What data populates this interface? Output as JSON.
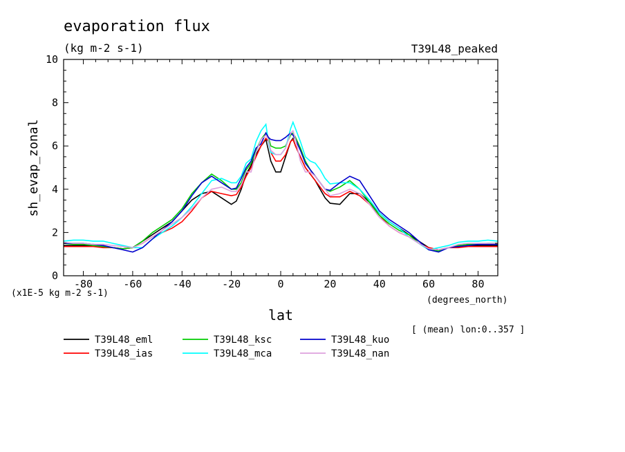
{
  "chart_data": {
    "type": "line",
    "title": "evaporation flux",
    "subtitle": "(kg m-2 s-1)",
    "experiment_label": "T39L48_peaked",
    "ylabel": "sh_evap_zonal",
    "xlabel": "lat",
    "xunits": "(degrees_north)",
    "yscale_note": "(x1E-5 kg m-2 s-1)",
    "mean_note": "[ (mean) lon:0..357 ]",
    "xlim": [
      -88,
      88
    ],
    "ylim": [
      0,
      10
    ],
    "xticks": [
      -80,
      -60,
      -40,
      -20,
      0,
      20,
      40,
      60,
      80
    ],
    "xtick_labels": [
      "-80",
      "-60",
      "-40",
      "-20",
      "0",
      "20",
      "40",
      "60",
      "80"
    ],
    "yticks": [
      0,
      2,
      4,
      6,
      8,
      10
    ],
    "ytick_labels": [
      "0",
      "2",
      "4",
      "6",
      "8",
      "10"
    ],
    "x": [
      -88,
      -84,
      -80,
      -76,
      -72,
      -68,
      -64,
      -60,
      -56,
      -52,
      -48,
      -44,
      -40,
      -36,
      -32,
      -28,
      -24,
      -20,
      -18,
      -16,
      -14,
      -12,
      -10,
      -8,
      -6,
      -5,
      -4,
      -2,
      0,
      2,
      4,
      5,
      6,
      8,
      10,
      12,
      14,
      16,
      18,
      20,
      24,
      28,
      32,
      36,
      40,
      44,
      48,
      52,
      56,
      60,
      64,
      68,
      72,
      76,
      80,
      84,
      88
    ],
    "series": [
      {
        "name": "T39L48_eml",
        "color": "#000000",
        "values": [
          1.4,
          1.4,
          1.4,
          1.4,
          1.35,
          1.3,
          1.25,
          1.3,
          1.6,
          1.9,
          2.2,
          2.5,
          3.0,
          3.5,
          3.8,
          3.9,
          3.6,
          3.3,
          3.45,
          4.0,
          4.7,
          5.1,
          5.6,
          6.0,
          6.3,
          5.8,
          5.3,
          4.8,
          4.8,
          5.5,
          6.2,
          6.35,
          6.0,
          5.5,
          5.0,
          4.7,
          4.4,
          4.0,
          3.6,
          3.35,
          3.3,
          3.8,
          3.8,
          3.4,
          2.9,
          2.5,
          2.2,
          1.9,
          1.6,
          1.3,
          1.2,
          1.3,
          1.35,
          1.4,
          1.4,
          1.4,
          1.4
        ]
      },
      {
        "name": "T39L48_ias",
        "color": "#ff0000",
        "values": [
          1.35,
          1.35,
          1.35,
          1.35,
          1.3,
          1.3,
          1.25,
          1.3,
          1.5,
          1.8,
          2.0,
          2.2,
          2.5,
          3.0,
          3.6,
          3.9,
          3.8,
          3.7,
          3.75,
          4.1,
          4.6,
          5.0,
          5.5,
          6.0,
          6.35,
          6.2,
          5.7,
          5.3,
          5.3,
          5.6,
          6.2,
          6.3,
          6.0,
          5.5,
          5.0,
          4.7,
          4.4,
          4.1,
          3.8,
          3.65,
          3.65,
          3.9,
          3.7,
          3.3,
          2.8,
          2.3,
          2.0,
          1.8,
          1.5,
          1.3,
          1.2,
          1.3,
          1.3,
          1.35,
          1.35,
          1.35,
          1.35
        ]
      },
      {
        "name": "T39L48_ksc",
        "color": "#00cc00",
        "values": [
          1.5,
          1.45,
          1.45,
          1.4,
          1.35,
          1.3,
          1.25,
          1.3,
          1.6,
          2.0,
          2.3,
          2.6,
          3.1,
          3.8,
          4.3,
          4.7,
          4.4,
          4.0,
          4.0,
          4.3,
          4.9,
          5.2,
          5.8,
          6.3,
          6.6,
          6.4,
          6.0,
          5.9,
          5.9,
          6.0,
          6.5,
          6.6,
          6.4,
          5.9,
          5.3,
          4.9,
          4.6,
          4.3,
          4.0,
          3.9,
          4.1,
          4.4,
          4.0,
          3.4,
          2.8,
          2.4,
          2.1,
          1.9,
          1.5,
          1.2,
          1.15,
          1.3,
          1.4,
          1.45,
          1.45,
          1.5,
          1.5
        ]
      },
      {
        "name": "T39L48_mca",
        "color": "#00ffff",
        "values": [
          1.6,
          1.65,
          1.65,
          1.6,
          1.6,
          1.5,
          1.4,
          1.3,
          1.3,
          1.7,
          2.0,
          2.3,
          2.7,
          3.2,
          3.8,
          4.4,
          4.5,
          4.3,
          4.3,
          4.6,
          5.2,
          5.4,
          6.2,
          6.7,
          7.0,
          6.2,
          5.7,
          5.6,
          5.6,
          5.9,
          6.8,
          7.1,
          6.8,
          6.2,
          5.5,
          5.3,
          5.2,
          4.9,
          4.5,
          4.25,
          4.3,
          4.3,
          4.0,
          3.5,
          2.9,
          2.5,
          2.2,
          1.8,
          1.5,
          1.2,
          1.3,
          1.4,
          1.55,
          1.6,
          1.6,
          1.65,
          1.6
        ]
      },
      {
        "name": "T39L48_kuo",
        "color": "#0000cc",
        "values": [
          1.5,
          1.5,
          1.5,
          1.45,
          1.4,
          1.3,
          1.2,
          1.1,
          1.3,
          1.7,
          2.1,
          2.5,
          3.0,
          3.7,
          4.3,
          4.6,
          4.3,
          4.0,
          4.05,
          4.5,
          5.0,
          5.3,
          5.9,
          6.1,
          6.6,
          6.4,
          6.3,
          6.25,
          6.25,
          6.4,
          6.6,
          6.5,
          6.3,
          5.8,
          5.2,
          4.9,
          4.6,
          4.3,
          4.0,
          3.95,
          4.3,
          4.6,
          4.4,
          3.7,
          3.0,
          2.6,
          2.3,
          2.0,
          1.6,
          1.2,
          1.1,
          1.3,
          1.35,
          1.4,
          1.45,
          1.45,
          1.45
        ]
      },
      {
        "name": "T39L48_nan",
        "color": "#dda0dd",
        "values": [
          1.55,
          1.5,
          1.5,
          1.45,
          1.45,
          1.4,
          1.35,
          1.3,
          1.5,
          1.8,
          2.1,
          2.4,
          2.7,
          3.1,
          3.6,
          4.0,
          4.1,
          3.9,
          3.9,
          4.2,
          4.8,
          4.8,
          5.7,
          6.3,
          6.5,
          6.3,
          5.8,
          5.6,
          5.6,
          5.9,
          6.6,
          6.7,
          6.3,
          5.3,
          4.8,
          4.8,
          4.6,
          4.3,
          4.0,
          3.7,
          3.8,
          4.0,
          3.8,
          3.3,
          2.7,
          2.3,
          2.0,
          1.8,
          1.5,
          1.25,
          1.2,
          1.3,
          1.45,
          1.5,
          1.5,
          1.5,
          1.5
        ]
      }
    ],
    "grid": false,
    "legend_position": "bottom-left"
  }
}
